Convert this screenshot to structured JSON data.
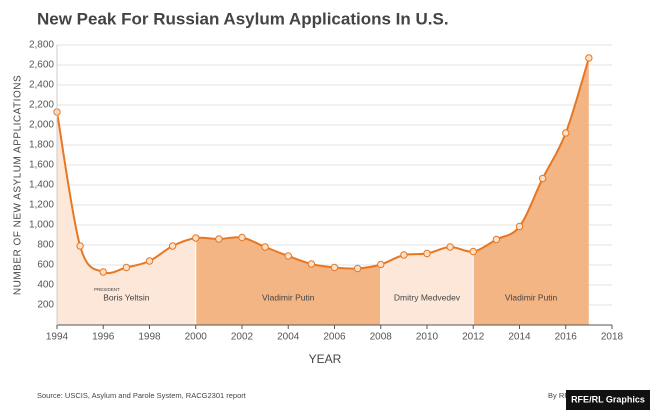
{
  "chart_data": {
    "type": "line",
    "title": "New Peak For Russian Asylum Applications In U.S.",
    "x_label": "YEAR",
    "y_label": "NUMBER OF NEW ASYLUM APPLICATIONS",
    "source": "Source: USCIS, Asylum and Parole System, RACG2301 report",
    "byline": "By RF",
    "logo": "RFE/RL Graphics",
    "x": [
      1994,
      1995,
      1996,
      1997,
      1998,
      1999,
      2000,
      2001,
      2002,
      2003,
      2004,
      2005,
      2006,
      2007,
      2008,
      2009,
      2010,
      2011,
      2012,
      2013,
      2014,
      2015,
      2016,
      2017
    ],
    "series": [
      {
        "name": "Applications",
        "color": "#e87722",
        "values": [
          2130,
          790,
          530,
          575,
          640,
          790,
          870,
          860,
          875,
          780,
          690,
          610,
          575,
          565,
          605,
          700,
          715,
          780,
          735,
          855,
          985,
          1465,
          1920,
          2670
        ]
      }
    ],
    "periods": [
      {
        "start": 1994,
        "end": 2000,
        "name": "Boris Yeltsin",
        "label": "PRESIDENT",
        "color": "#fde7d8"
      },
      {
        "start": 2000,
        "end": 2008,
        "name": "Vladimir Putin",
        "color": "#f4b585"
      },
      {
        "start": 2008,
        "end": 2012,
        "name": "Dmitry Medvedev",
        "color": "#fde7d8"
      },
      {
        "start": 2012,
        "end": 2017,
        "name": "Vladimir Putin",
        "color": "#f4b585"
      }
    ],
    "xlim": [
      1994,
      2018
    ],
    "xticks": [
      1994,
      1996,
      1998,
      2000,
      2002,
      2004,
      2006,
      2008,
      2010,
      2012,
      2014,
      2016,
      2018
    ],
    "ylim": [
      0,
      2800
    ],
    "yticks": [
      200,
      400,
      600,
      800,
      {
        "value": 1000,
        "label": "1,000"
      },
      {
        "value": 1200,
        "label": "1,200"
      },
      {
        "value": 1400,
        "label": "1,400"
      },
      {
        "value": 1600,
        "label": "1,600"
      },
      {
        "value": 1800,
        "label": "1,800"
      },
      {
        "value": 2000,
        "label": "2,000"
      },
      {
        "value": 2200,
        "label": "2,200"
      },
      {
        "value": 2400,
        "label": "2,400"
      },
      {
        "value": 2600,
        "label": "2,600"
      },
      {
        "value": 2800,
        "label": "2,800"
      }
    ],
    "grid": true
  }
}
